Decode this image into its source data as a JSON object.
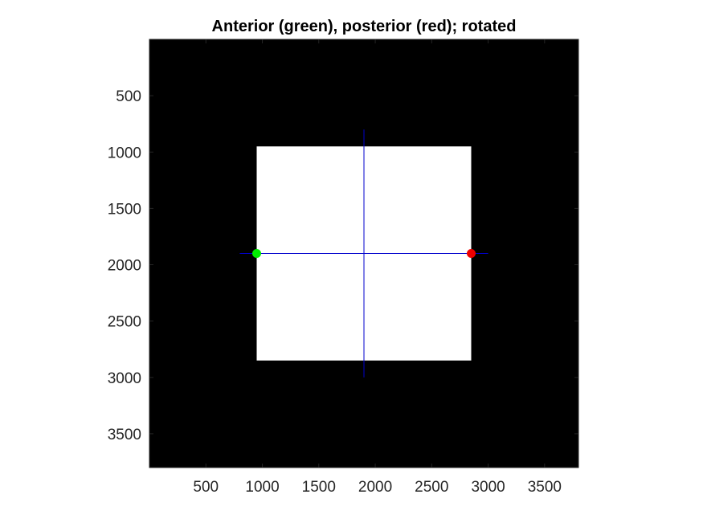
{
  "chart_data": {
    "type": "scatter",
    "title": "Anterior (green), posterior (red); rotated",
    "xlabel": "",
    "ylabel": "",
    "xlim": [
      0,
      3800
    ],
    "ylim": [
      3800,
      0
    ],
    "y_reversed": true,
    "grid": false,
    "background_color": "#000000",
    "xticks": [
      500,
      1000,
      1500,
      2000,
      2500,
      3000,
      3500
    ],
    "xtick_labels": [
      "500",
      "1000",
      "1500",
      "2000",
      "2500",
      "3000",
      "3500"
    ],
    "yticks": [
      500,
      1000,
      1500,
      2000,
      2500,
      3000,
      3500
    ],
    "ytick_labels": [
      "500",
      "1000",
      "1500",
      "2000",
      "2500",
      "3000",
      "3500"
    ],
    "region": {
      "color": "#ffffff",
      "x_min": 950,
      "x_max": 2850,
      "y_min": 950,
      "y_max": 2850
    },
    "crosshair": {
      "color": "#0000cc",
      "horizontal": {
        "y": 1900,
        "x_from": 800,
        "x_to": 3000
      },
      "vertical": {
        "x": 1900,
        "y_from": 800,
        "y_to": 3000
      }
    },
    "series": [
      {
        "color": "#00ee00",
        "points": [
          [
            950,
            1900
          ]
        ]
      },
      {
        "color": "#ee0000",
        "points": [
          [
            2850,
            1900
          ]
        ]
      }
    ]
  }
}
